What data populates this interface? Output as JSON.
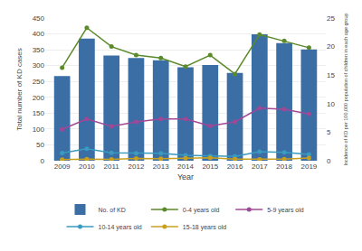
{
  "chart_data": {
    "type": "bar",
    "xlabel": "Year",
    "ylabel": "Total number of KD cases",
    "y2label": "Incidence of KD per 100,000 population of children in each age group",
    "categories": [
      "2009",
      "2010",
      "2011",
      "2012",
      "2013",
      "2014",
      "2015",
      "2016",
      "2017",
      "2018",
      "2019"
    ],
    "series": [
      {
        "name": "No. of KD",
        "type": "bar",
        "color": "#3a6ea5",
        "values": [
          267,
          385,
          332,
          324,
          317,
          295,
          302,
          277,
          399,
          371,
          351
        ]
      },
      {
        "name": "0-4 years old",
        "type": "line",
        "axis": "y2",
        "marker": "circle",
        "color": "#5a8a2a",
        "values": [
          16.3,
          23.3,
          20.0,
          18.5,
          18.0,
          16.5,
          18.5,
          15.2,
          22.1,
          21.0,
          19.8
        ]
      },
      {
        "name": "5-9 years old",
        "type": "line",
        "axis": "y2",
        "marker": "circle",
        "color": "#a04898",
        "values": [
          5.5,
          7.3,
          6.0,
          6.8,
          7.3,
          7.3,
          6.1,
          6.8,
          9.2,
          9.0,
          8.2
        ]
      },
      {
        "name": "10-14 years old",
        "type": "line",
        "axis": "y2",
        "marker": "circle",
        "color": "#3a9abf",
        "values": [
          1.35,
          2.1,
          1.4,
          1.3,
          1.3,
          0.95,
          0.85,
          0.75,
          1.6,
          1.45,
          1.1
        ]
      },
      {
        "name": "15-18 years old",
        "type": "line",
        "axis": "y2",
        "marker": "circle",
        "color": "#c8a020",
        "values": [
          0.18,
          0.28,
          0.22,
          0.38,
          0.35,
          0.42,
          0.5,
          0.28,
          0.25,
          0.28,
          0.48
        ]
      }
    ],
    "ylim": [
      0,
      450
    ],
    "yticks": [
      0,
      50,
      100,
      150,
      200,
      250,
      300,
      350,
      400,
      450
    ],
    "y2lim": [
      0,
      25
    ],
    "y2ticks": [
      0,
      5,
      10,
      15,
      20,
      25
    ],
    "grid": true,
    "legend": "bottom"
  }
}
